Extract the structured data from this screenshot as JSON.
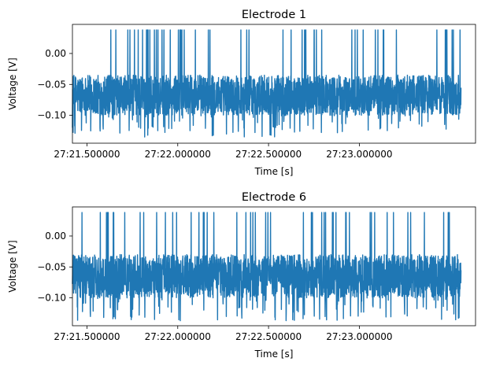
{
  "chart_data": [
    {
      "type": "line",
      "title": "Electrode 1",
      "xlabel": "Time [s]",
      "ylabel": "Voltage [V]",
      "xlim": [
        1641.42,
        1643.64
      ],
      "ylim": [
        -0.145,
        0.047
      ],
      "xticks": [
        1641.5,
        1642.0,
        1642.5,
        1643.0
      ],
      "xtick_labels": [
        "27:21.500000",
        "27:22.000000",
        "27:22.500000",
        "27:23.000000"
      ],
      "yticks": [
        0.0,
        -0.05,
        -0.1
      ],
      "ytick_labels": [
        "0.00",
        "−0.05",
        "−0.10"
      ],
      "color": "#1f77b4",
      "signal": {
        "t_start": 1641.42,
        "t_end": 1643.56,
        "baseline_range": [
          -0.1,
          -0.035
        ],
        "noise_floor_min": -0.137,
        "spike_peak": 0.038
      },
      "series": [
        {
          "x": [],
          "values": []
        }
      ]
    },
    {
      "type": "line",
      "title": "Electrode 6",
      "xlabel": "Time [s]",
      "ylabel": "Voltage [V]",
      "xlim": [
        1641.42,
        1643.64
      ],
      "ylim": [
        -0.145,
        0.047
      ],
      "xticks": [
        1641.5,
        1642.0,
        1642.5,
        1643.0
      ],
      "xtick_labels": [
        "27:21.500000",
        "27:22.000000",
        "27:22.500000",
        "27:23.000000"
      ],
      "yticks": [
        0.0,
        -0.05,
        -0.1
      ],
      "ytick_labels": [
        "0.00",
        "−0.05",
        "−0.10"
      ],
      "color": "#1f77b4",
      "signal": {
        "t_start": 1641.42,
        "t_end": 1643.56,
        "baseline_range": [
          -0.1,
          -0.03
        ],
        "noise_floor_min": -0.137,
        "spike_peak": 0.038
      },
      "series": [
        {
          "x": [],
          "values": []
        }
      ]
    }
  ]
}
